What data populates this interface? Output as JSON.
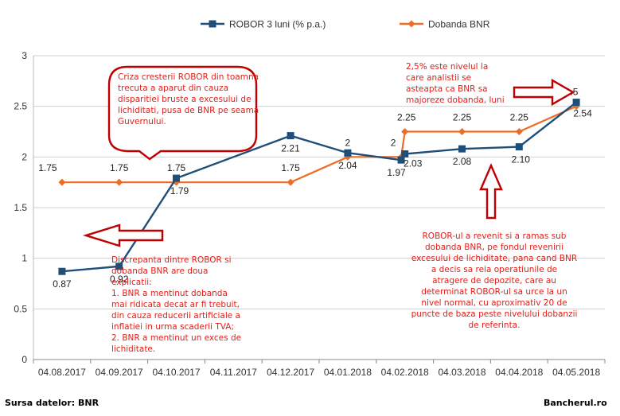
{
  "chart_data": {
    "type": "line",
    "x": [
      "04.08.2017",
      "04.09.2017",
      "04.10.2017",
      "04.11.2017",
      "04.12.2017",
      "04.01.2018",
      "04.02.2018",
      "04.03.2018",
      "04.04.2018",
      "04.05.2018"
    ],
    "ylim": [
      0,
      3
    ],
    "yticks": [
      "0",
      "0.5",
      "1",
      "1.5",
      "2",
      "2.5",
      "3"
    ],
    "grid": "horizontal",
    "legend_position": "top",
    "series": [
      {
        "name": "ROBOR 3 luni (% p.a.)",
        "color": "#1f4e79",
        "marker": "square",
        "points": [
          {
            "x": "04.08.2017",
            "y": 0.87,
            "label": "0.87"
          },
          {
            "x": "04.09.2017",
            "y": 0.92,
            "label": "0.92"
          },
          {
            "x": "04.10.2017",
            "y": 1.79,
            "label": "1.79"
          },
          {
            "x": "04.12.2017",
            "y": 2.21,
            "label": "2.21"
          },
          {
            "x": "04.01.2018",
            "y": 2.04,
            "label": "2.04"
          },
          {
            "x": "02.02.2018",
            "y": 1.97,
            "label": "1.97"
          },
          {
            "x": "04.02.2018",
            "y": 2.03,
            "label": "2.03"
          },
          {
            "x": "04.03.2018",
            "y": 2.08,
            "label": "2.08"
          },
          {
            "x": "04.04.2018",
            "y": 2.1,
            "label": "2.10"
          },
          {
            "x": "04.05.2018",
            "y": 2.54,
            "label": "2.54"
          }
        ]
      },
      {
        "name": "Dobanda BNR",
        "color": "#ed6d26",
        "marker": "diamond",
        "points": [
          {
            "x": "04.08.2017",
            "y": 1.75,
            "label": "1.75"
          },
          {
            "x": "04.09.2017",
            "y": 1.75,
            "label": "1.75"
          },
          {
            "x": "04.10.2017",
            "y": 1.75,
            "label": "1.75"
          },
          {
            "x": "04.12.2017",
            "y": 1.75,
            "label": "1.75"
          },
          {
            "x": "04.01.2018",
            "y": 2.0,
            "label": "2"
          },
          {
            "x": "02.02.2018",
            "y": 2.0,
            "label": "2"
          },
          {
            "x": "04.02.2018",
            "y": 2.25,
            "label": "2.25"
          },
          {
            "x": "04.03.2018",
            "y": 2.25,
            "label": "2.25"
          },
          {
            "x": "04.04.2018",
            "y": 2.25,
            "label": "2.25"
          },
          {
            "x": "04.05.2018",
            "y": 2.5,
            "label": "2.5"
          }
        ]
      }
    ],
    "annotations": {
      "callout": "Criza cresterii ROBOR din toamna trecuta a aparut din cauza disparitiei bruste a excesului de lichiditati, pusa de BNR pe seama Guvernului.",
      "note_left_lines": [
        "Discrepanta dintre ROBOR si",
        "dobanda BNR are doua",
        "explicatii:",
        "1. BNR a mentinut dobanda",
        "mai ridicata decat ar fi trebuit,",
        "din cauza reducerii artificiale a",
        "inflatiei in urma scaderii TVA;",
        "2. BNR a mentinut un exces de",
        "lichiditate."
      ],
      "note_top_right_lines": [
        "2,5% este nivelul la",
        "care analistii se",
        "asteapta ca BNR sa",
        "majoreze dobanda, luni"
      ],
      "note_bottom_right_lines": [
        "ROBOR-ul a revenit si a ramas sub",
        "dobanda BNR, pe fondul revenirii",
        "excesului de lichiditate, pana cand BNR",
        "a decis sa reia operatiunile de",
        "atragere de depozite, care au",
        "determinat ROBOR-ul sa urce la un",
        "nivel normal, cu aproximativ 20 de",
        "puncte de baza peste nivelului dobanzii",
        "de referinta."
      ]
    }
  },
  "footer": {
    "source": "Sursa datelor: BNR",
    "site": "Bancherul.ro"
  },
  "colors": {
    "annotation": "#e0201b",
    "grid": "#d0d0d0"
  }
}
